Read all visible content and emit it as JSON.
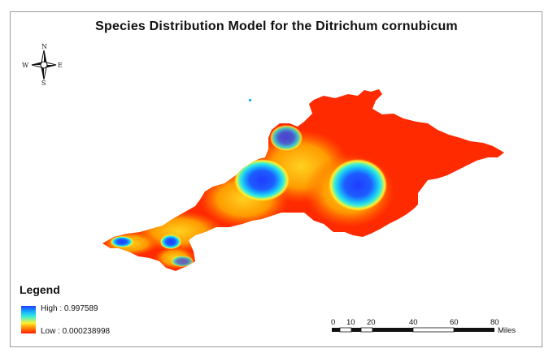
{
  "map": {
    "title": "Species Distribution Model for the Ditrichum cornubicum",
    "compass": {
      "north": "N",
      "south": "S",
      "east": "E",
      "west": "W"
    },
    "legend": {
      "title": "Legend",
      "high_label": "High : 0.997589",
      "low_label": "Low : 0.000238998",
      "ramp_colors": [
        "#1e3cff",
        "#16b4ff",
        "#3cf0d2",
        "#fff030",
        "#ff8a00",
        "#ff1a00"
      ]
    },
    "scale_bar": {
      "ticks": [
        "0",
        "10",
        "20",
        "40",
        "60",
        "80"
      ],
      "unit": "Miles"
    },
    "colors": {
      "low": "#ff1a00",
      "mid_low": "#ff8a00",
      "mid": "#fff030",
      "mid_high": "#3cf0d2",
      "high": "#1e3cff"
    }
  }
}
